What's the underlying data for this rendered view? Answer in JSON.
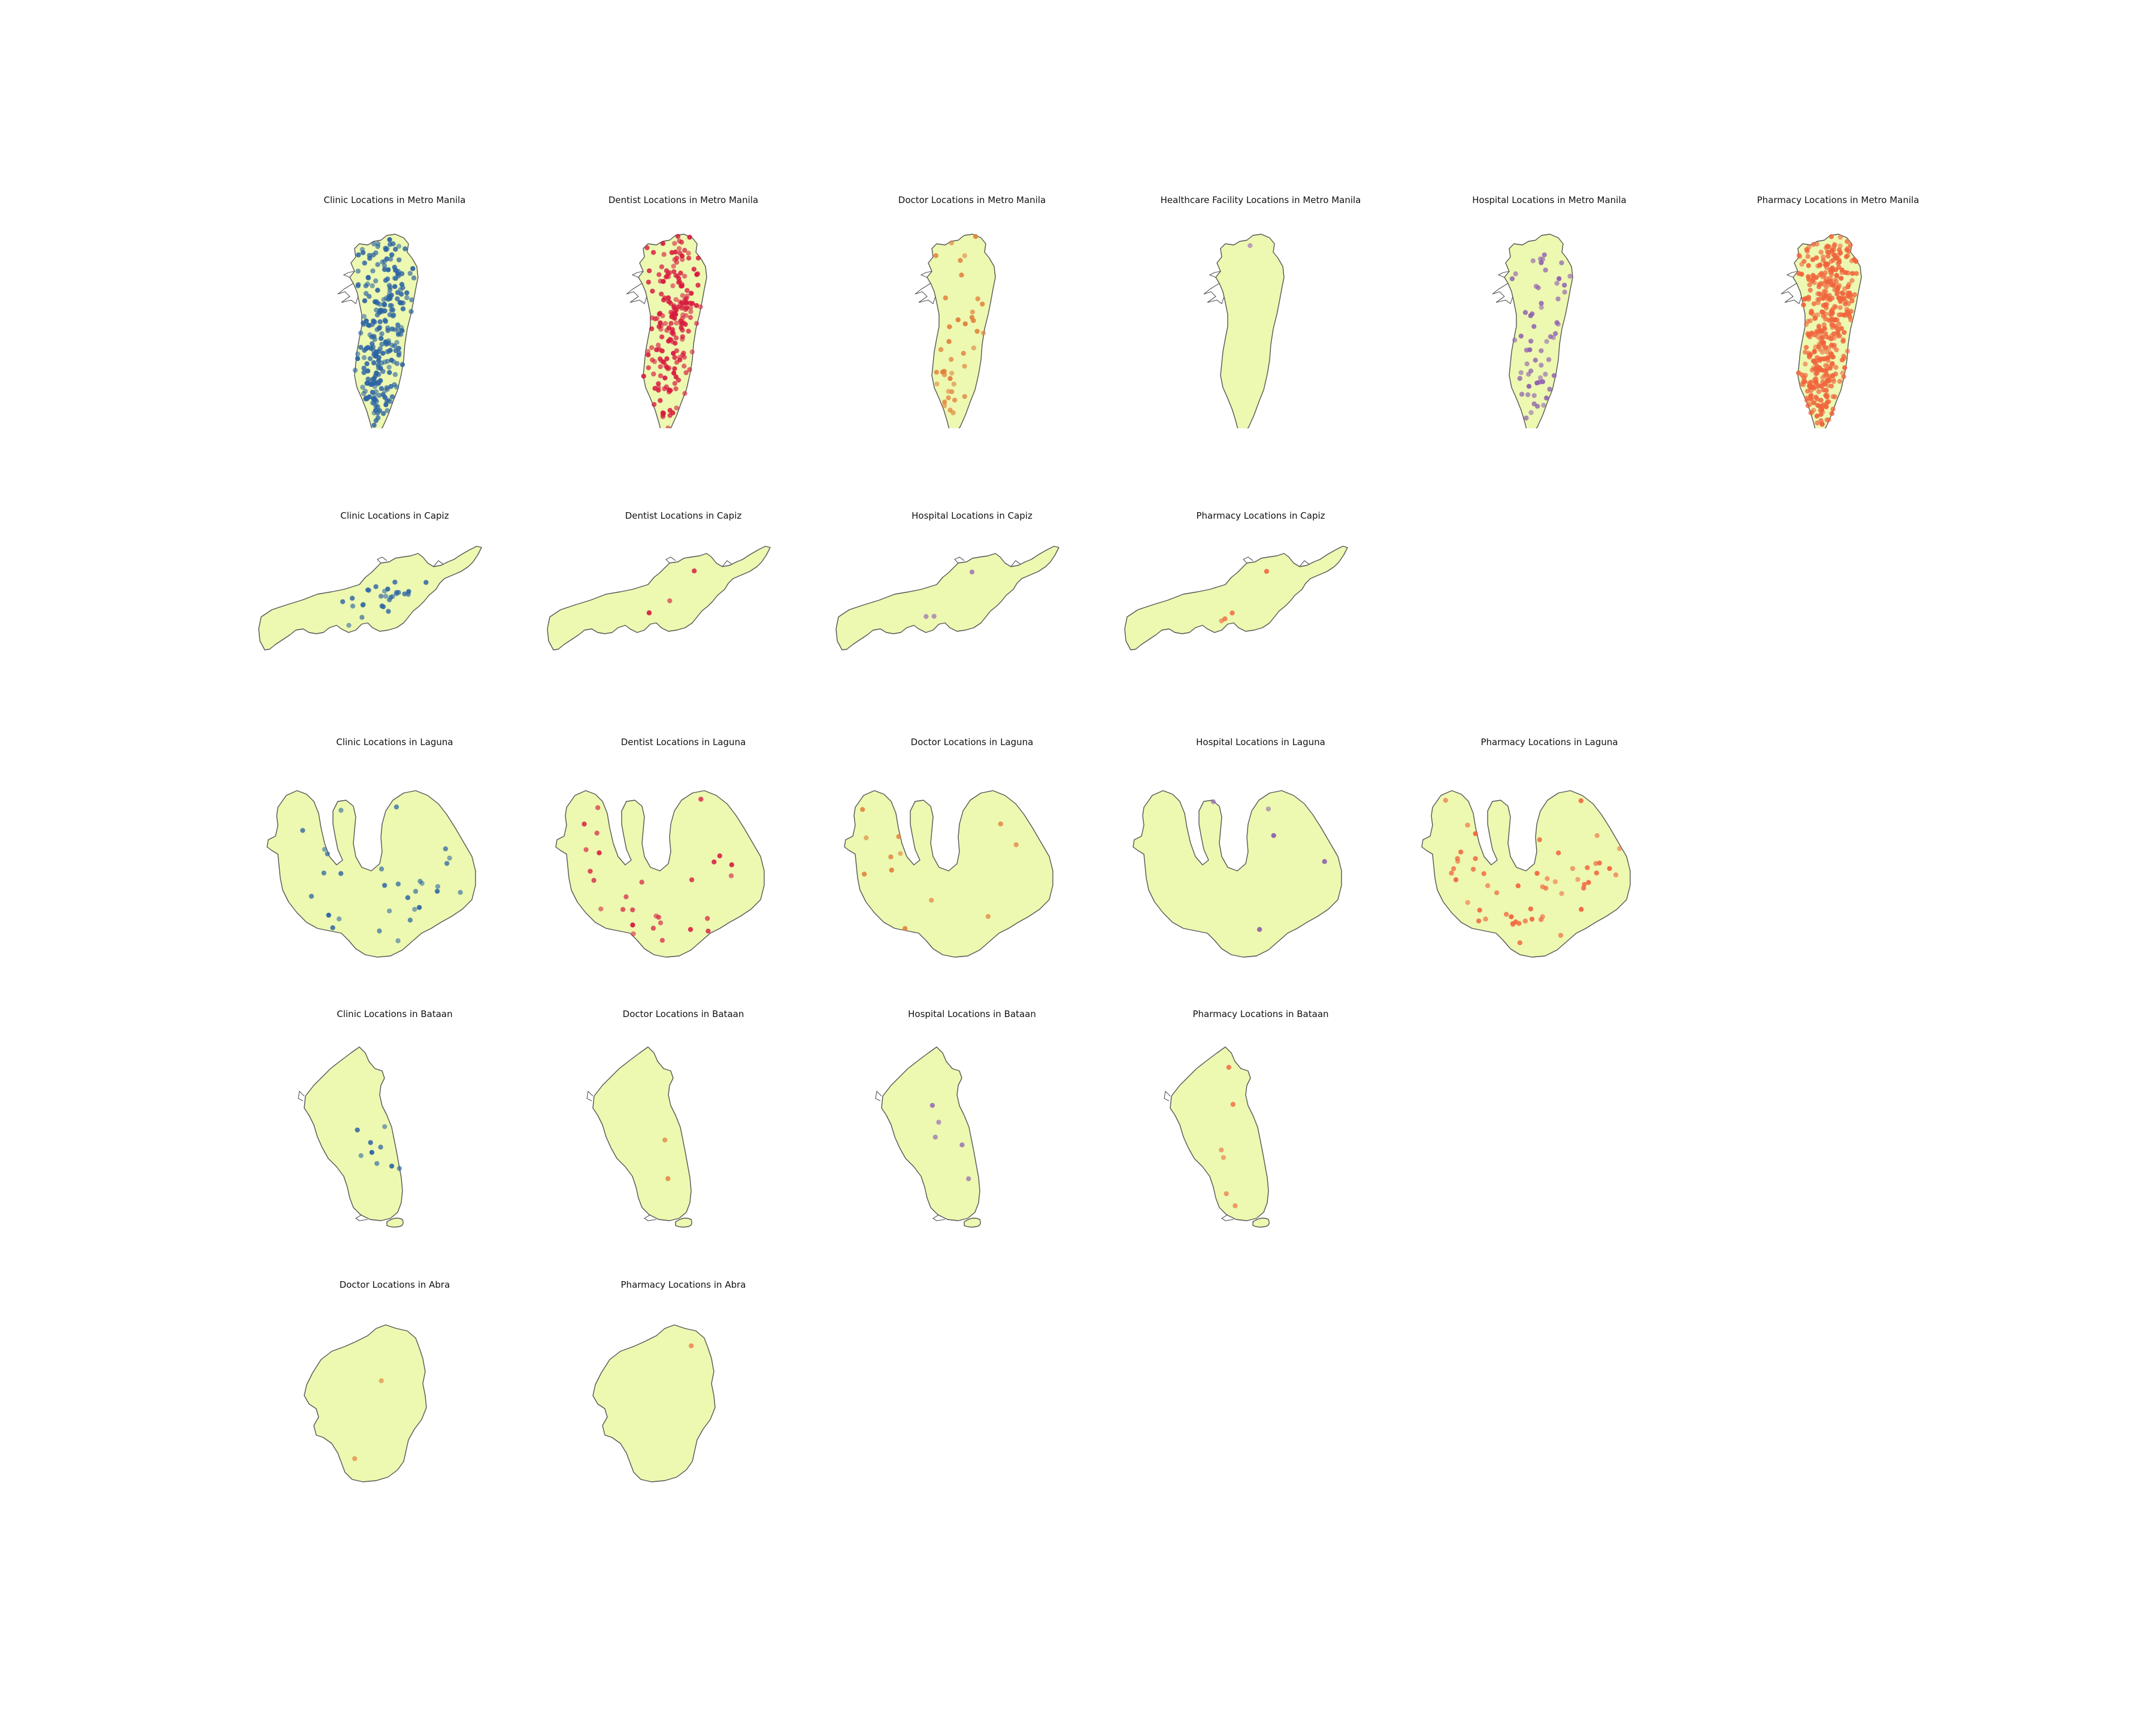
{
  "figure": {
    "panels": [
      {
        "title": "Clinic Locations in Metro Manila",
        "region": "Metro Manila",
        "facility": "Clinic",
        "color": "#2c64a3",
        "num_points": 260
      },
      {
        "title": "Dentist Locations in Metro Manila",
        "region": "Metro Manila",
        "facility": "Dentist",
        "color": "#d7193f",
        "num_points": 200
      },
      {
        "title": "Doctor Locations in Metro Manila",
        "region": "Metro Manila",
        "facility": "Doctor",
        "color": "#e0803a",
        "num_points": 40
      },
      {
        "title": "Healthcare Facility Locations in Metro Manila",
        "region": "Metro Manila",
        "facility": "Healthcare Facility",
        "color": "#9e6bbd",
        "num_points": 1
      },
      {
        "title": "Hospital Locations in Metro Manila",
        "region": "Metro Manila",
        "facility": "Hospital",
        "color": "#8e5fb0",
        "num_points": 60
      },
      {
        "title": "Pharmacy Locations in Metro Manila",
        "region": "Metro Manila",
        "facility": "Pharmacy",
        "color": "#f0643c",
        "num_points": 420
      },
      {
        "title": "Clinic Locations in Capiz",
        "region": "Capiz",
        "facility": "Clinic",
        "color": "#2c64a3",
        "num_points": 28
      },
      {
        "title": "Dentist Locations in Capiz",
        "region": "Capiz",
        "facility": "Dentist",
        "color": "#d7193f",
        "num_points": 3
      },
      {
        "title": "Hospital Locations in Capiz",
        "region": "Capiz",
        "facility": "Hospital",
        "color": "#8e5fb0",
        "num_points": 3
      },
      {
        "title": "Pharmacy Locations in Capiz",
        "region": "Capiz",
        "facility": "Pharmacy",
        "color": "#f0643c",
        "num_points": 4
      },
      {
        "title": "Clinic Locations in Laguna",
        "region": "Laguna",
        "facility": "Clinic",
        "color": "#2c64a3",
        "num_points": 30
      },
      {
        "title": "Dentist Locations in Laguna",
        "region": "Laguna",
        "facility": "Dentist",
        "color": "#d7193f",
        "num_points": 28
      },
      {
        "title": "Doctor Locations in Laguna",
        "region": "Laguna",
        "facility": "Doctor",
        "color": "#e0803a",
        "num_points": 12
      },
      {
        "title": "Hospital Locations in Laguna",
        "region": "Laguna",
        "facility": "Hospital",
        "color": "#8e5fb0",
        "num_points": 5
      },
      {
        "title": "Pharmacy Locations in Laguna",
        "region": "Laguna",
        "facility": "Pharmacy",
        "color": "#f0643c",
        "num_points": 55
      },
      {
        "title": "Clinic Locations in Bataan",
        "region": "Bataan",
        "facility": "Clinic",
        "color": "#2c64a3",
        "num_points": 9
      },
      {
        "title": "Doctor Locations in Bataan",
        "region": "Bataan",
        "facility": "Doctor",
        "color": "#e0803a",
        "num_points": 2
      },
      {
        "title": "Hospital Locations in Bataan",
        "region": "Bataan",
        "facility": "Hospital",
        "color": "#8e5fb0",
        "num_points": 5
      },
      {
        "title": "Pharmacy Locations in Bataan",
        "region": "Bataan",
        "facility": "Pharmacy",
        "color": "#f0643c",
        "num_points": 6
      },
      {
        "title": "Doctor Locations in Abra",
        "region": "Abra",
        "facility": "Doctor",
        "color": "#e0803a",
        "num_points": 2
      },
      {
        "title": "Pharmacy Locations in Abra",
        "region": "Abra",
        "facility": "Pharmacy",
        "color": "#f0643c",
        "num_points": 1
      }
    ],
    "region_fill": "#edf8b1",
    "region_edge": "#555555"
  }
}
